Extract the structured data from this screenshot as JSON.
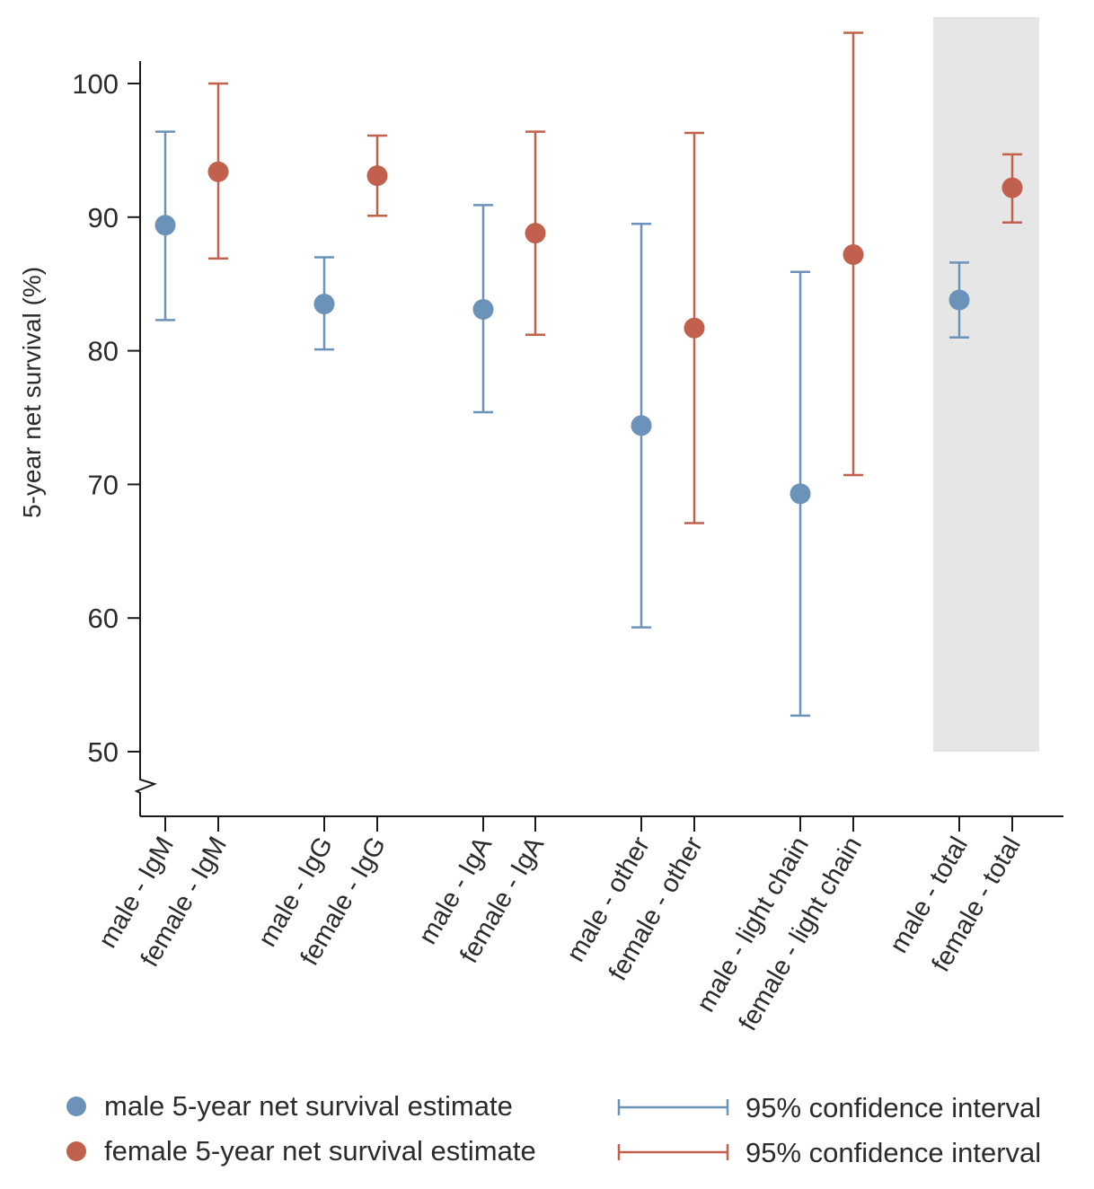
{
  "chart_data": {
    "type": "scatter",
    "subtype": "point-estimate-with-error-bars",
    "title": "",
    "ylabel": "5-year net survival (%)",
    "xlabel": "",
    "ylim": [
      50,
      100
    ],
    "y_axis_break": true,
    "yticks": [
      50,
      60,
      70,
      80,
      90,
      100
    ],
    "grid": false,
    "categories": [
      "male - IgM",
      "female - IgM",
      "male - IgG",
      "female - IgG",
      "male - IgA",
      "female - IgA",
      "male - other",
      "female - other",
      "male - light chain",
      "female - light chain",
      "male - total",
      "female - total"
    ],
    "points": [
      {
        "category": "male - IgM",
        "sex": "male",
        "estimate": 89.4,
        "ci_lower": 82.3,
        "ci_upper": 96.4
      },
      {
        "category": "female - IgM",
        "sex": "female",
        "estimate": 93.4,
        "ci_lower": 86.9,
        "ci_upper": 100.0
      },
      {
        "category": "male - IgG",
        "sex": "male",
        "estimate": 83.5,
        "ci_lower": 80.1,
        "ci_upper": 87.0
      },
      {
        "category": "female - IgG",
        "sex": "female",
        "estimate": 93.1,
        "ci_lower": 90.1,
        "ci_upper": 96.1
      },
      {
        "category": "male - IgA",
        "sex": "male",
        "estimate": 83.1,
        "ci_lower": 75.4,
        "ci_upper": 90.9
      },
      {
        "category": "female - IgA",
        "sex": "female",
        "estimate": 88.8,
        "ci_lower": 81.2,
        "ci_upper": 96.4
      },
      {
        "category": "male - other",
        "sex": "male",
        "estimate": 74.4,
        "ci_lower": 59.3,
        "ci_upper": 89.5
      },
      {
        "category": "female - other",
        "sex": "female",
        "estimate": 81.7,
        "ci_lower": 67.1,
        "ci_upper": 96.3
      },
      {
        "category": "male - light chain",
        "sex": "male",
        "estimate": 69.3,
        "ci_lower": 52.7,
        "ci_upper": 85.9
      },
      {
        "category": "female - light chain",
        "sex": "female",
        "estimate": 87.2,
        "ci_lower": 70.7,
        "ci_upper": 103.8
      },
      {
        "category": "male - total",
        "sex": "male",
        "estimate": 83.8,
        "ci_lower": 81.0,
        "ci_upper": 86.6
      },
      {
        "category": "female - total",
        "sex": "female",
        "estimate": 92.2,
        "ci_lower": 89.6,
        "ci_upper": 94.7
      }
    ],
    "highlight": {
      "categories": [
        "male - total",
        "female - total"
      ],
      "color": "#e6e6e6"
    },
    "colors": {
      "male": "#6b93ba",
      "female": "#c1614d"
    },
    "legend": {
      "placement": "bottom",
      "items": [
        {
          "symbol": "dot",
          "sex": "male",
          "label": "male 5-year net survival estimate"
        },
        {
          "symbol": "errorbar",
          "sex": "male",
          "label": "95% confidence interval"
        },
        {
          "symbol": "dot",
          "sex": "female",
          "label": "female 5-year net survival estimate"
        },
        {
          "symbol": "errorbar",
          "sex": "female",
          "label": "95% confidence interval"
        }
      ]
    }
  }
}
